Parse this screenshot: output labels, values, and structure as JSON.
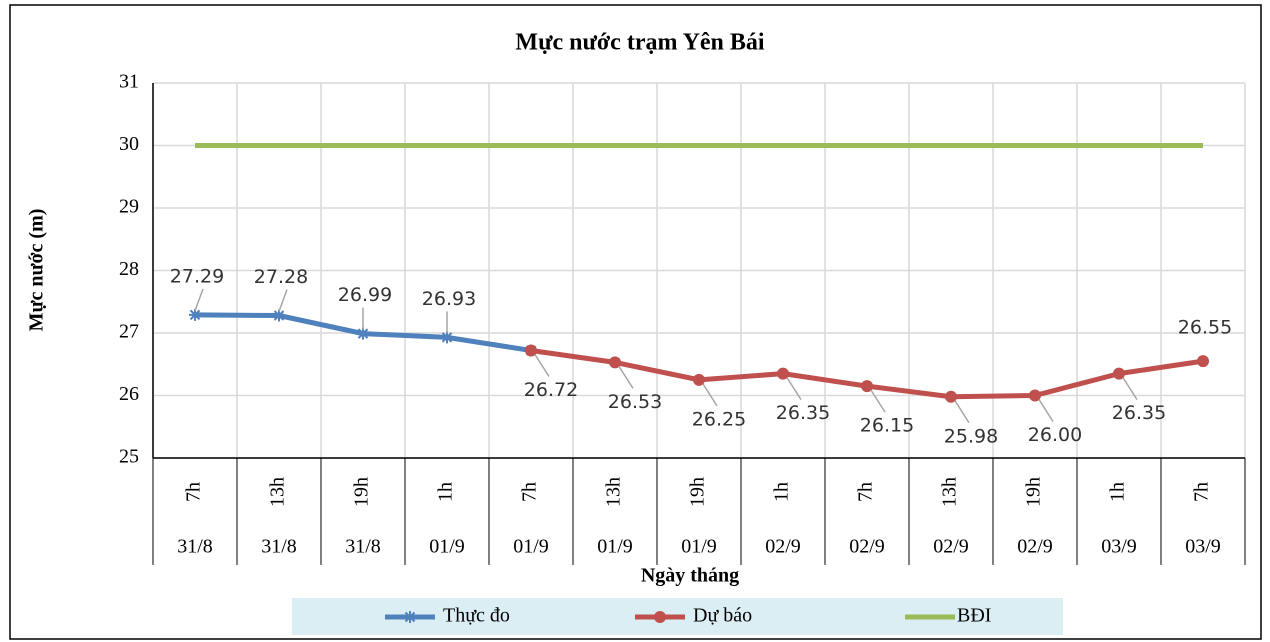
{
  "chart_data": {
    "type": "line",
    "title": "Mực nước trạm Yên Bái",
    "y_label": "Mực nước (m)",
    "x_label": "Ngày tháng",
    "categories": [
      "7h",
      "13h",
      "19h",
      "1h",
      "7h",
      "13h",
      "19h",
      "1h",
      "7h",
      "13h",
      "19h",
      "1h",
      "7h"
    ],
    "dates": [
      "31/8",
      "31/8",
      "31/8",
      "01/9",
      "01/9",
      "01/9",
      "01/9",
      "02/9",
      "02/9",
      "02/9",
      "02/9",
      "03/9",
      "03/9"
    ],
    "ylim": [
      25,
      31
    ],
    "yticks": [
      25,
      26,
      27,
      28,
      29,
      30,
      31
    ],
    "grid": true,
    "series": [
      {
        "name": "Thực đo",
        "color": "#4f81bd",
        "marker": "star",
        "values": [
          27.29,
          27.28,
          26.99,
          26.93,
          26.72,
          null,
          null,
          null,
          null,
          null,
          null,
          null,
          null
        ],
        "value_labels": [
          "27.29",
          "27.28",
          "26.99",
          "26.93",
          null,
          null,
          null,
          null,
          null,
          null,
          null,
          null,
          null
        ]
      },
      {
        "name": "Dự báo",
        "color": "#c0504d",
        "marker": "circle",
        "values": [
          null,
          null,
          null,
          null,
          26.72,
          26.53,
          26.25,
          26.35,
          26.15,
          25.98,
          26.0,
          26.35,
          26.55
        ],
        "value_labels": [
          null,
          null,
          null,
          null,
          "26.72",
          "26.53",
          "26.25",
          "26.35",
          "26.15",
          "25.98",
          "26.00",
          "26.35",
          "26.55"
        ]
      },
      {
        "name": "BĐI",
        "color": "#9bbb59",
        "marker": "none",
        "values": [
          30,
          30,
          30,
          30,
          30,
          30,
          30,
          30,
          30,
          30,
          30,
          30,
          30
        ]
      }
    ]
  }
}
